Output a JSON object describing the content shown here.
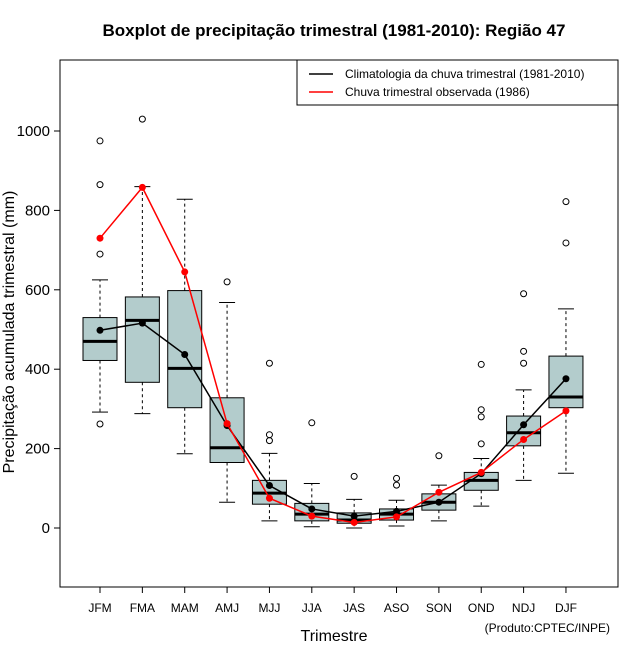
{
  "chart_data": {
    "type": "boxplot",
    "title": "Boxplot de precipitação trimestral (1981-2010): Região 47",
    "xlabel": "Trimestre",
    "ylabel": "Precipitação acumulada trimestral (mm)",
    "ylim": [
      -150,
      1180
    ],
    "yticks": [
      0,
      200,
      400,
      600,
      800,
      1000
    ],
    "credit": "(Produto:CPTEC/INPE)",
    "categories": [
      "JFM",
      "FMA",
      "MAM",
      "AMJ",
      "MJJ",
      "JJA",
      "JAS",
      "ASO",
      "SON",
      "OND",
      "NDJ",
      "DJF"
    ],
    "box_fill": "#b3cccc",
    "boxes": [
      {
        "whisker_low": 292,
        "q1": 422,
        "median": 470,
        "q3": 530,
        "whisker_high": 625,
        "outliers": [
          262,
          690,
          865,
          975
        ]
      },
      {
        "whisker_low": 288,
        "q1": 367,
        "median": 523,
        "q3": 582,
        "whisker_high": 860,
        "outliers": [
          1030
        ]
      },
      {
        "whisker_low": 187,
        "q1": 303,
        "median": 402,
        "q3": 598,
        "whisker_high": 828,
        "outliers": []
      },
      {
        "whisker_low": 65,
        "q1": 165,
        "median": 202,
        "q3": 328,
        "whisker_high": 568,
        "outliers": [
          620
        ]
      },
      {
        "whisker_low": 18,
        "q1": 60,
        "median": 88,
        "q3": 120,
        "whisker_high": 188,
        "outliers": [
          220,
          235,
          415
        ]
      },
      {
        "whisker_low": 3,
        "q1": 18,
        "median": 35,
        "q3": 62,
        "whisker_high": 112,
        "outliers": [
          265
        ]
      },
      {
        "whisker_low": 0,
        "q1": 12,
        "median": 20,
        "q3": 38,
        "whisker_high": 72,
        "outliers": [
          130
        ]
      },
      {
        "whisker_low": 5,
        "q1": 20,
        "median": 35,
        "q3": 48,
        "whisker_high": 70,
        "outliers": [
          108,
          125
        ]
      },
      {
        "whisker_low": 18,
        "q1": 45,
        "median": 65,
        "q3": 86,
        "whisker_high": 108,
        "outliers": [
          182
        ]
      },
      {
        "whisker_low": 55,
        "q1": 95,
        "median": 120,
        "q3": 140,
        "whisker_high": 175,
        "outliers": [
          212,
          280,
          298,
          412
        ]
      },
      {
        "whisker_low": 120,
        "q1": 207,
        "median": 240,
        "q3": 282,
        "whisker_high": 348,
        "outliers": [
          415,
          445,
          590
        ]
      },
      {
        "whisker_low": 138,
        "q1": 303,
        "median": 330,
        "q3": 433,
        "whisker_high": 552,
        "outliers": [
          718,
          822
        ]
      }
    ],
    "series": [
      {
        "name": "Climatologia da chuva trimestral (1981-2010)",
        "color": "#000000",
        "values": [
          498,
          516,
          437,
          258,
          107,
          48,
          30,
          42,
          65,
          137,
          260,
          376
        ]
      },
      {
        "name": "Chuva trimestral observada (1986)",
        "color": "#ff0000",
        "values": [
          730,
          858,
          645,
          263,
          75,
          30,
          14,
          28,
          90,
          140,
          223,
          295
        ]
      }
    ],
    "legend_position": "top-right"
  }
}
